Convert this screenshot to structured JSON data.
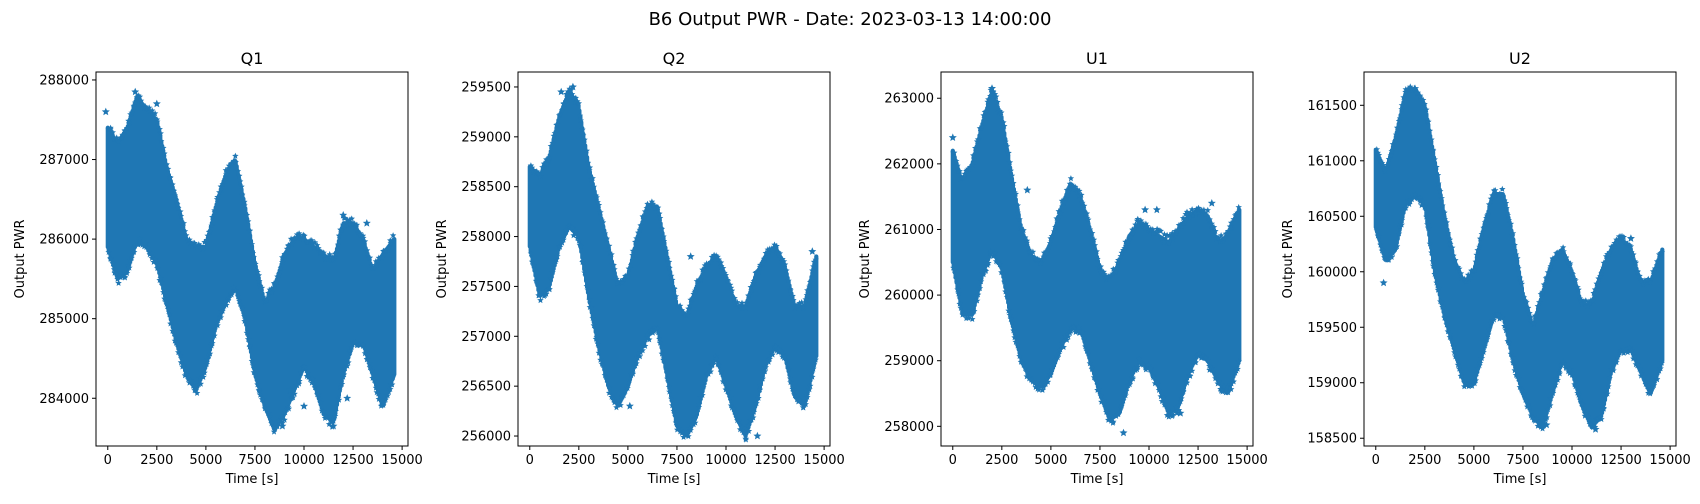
{
  "figure": {
    "title": "B6 Output PWR - Date: 2023-03-13 14:00:00"
  },
  "style": {
    "series_color": "#1f77b4",
    "axis_color": "#000000",
    "background": "#ffffff",
    "marker": "star"
  },
  "chart_data": [
    {
      "type": "scatter",
      "title": "Q1",
      "xlabel": "Time [s]",
      "ylabel": "Output PWR",
      "xlim": [
        -600,
        15300
      ],
      "ylim": [
        283400,
        288100
      ],
      "xticks": [
        0,
        2500,
        5000,
        7500,
        10000,
        12500,
        15000
      ],
      "yticks": [
        284000,
        285000,
        286000,
        287000,
        288000
      ],
      "series": [
        {
          "x": [
            0,
            500,
            1000,
            1500,
            2000,
            2500,
            3000,
            3500,
            4000,
            4500,
            5000,
            5500,
            6000,
            6500,
            7000,
            7500,
            8000,
            8500,
            9000,
            9500,
            10000,
            10500,
            11000,
            11500,
            12000,
            12500,
            13000,
            13500,
            14000,
            14600
          ],
          "upper": [
            287400,
            287200,
            287400,
            287800,
            287600,
            287500,
            286900,
            286500,
            286000,
            285900,
            285900,
            286400,
            286800,
            287000,
            286400,
            285700,
            285200,
            285400,
            285800,
            286000,
            286000,
            285900,
            285800,
            285700,
            286200,
            286200,
            286000,
            285600,
            285800,
            286000
          ],
          "lower": [
            285900,
            285500,
            285600,
            286000,
            285900,
            285700,
            285200,
            284700,
            284300,
            284100,
            284400,
            284900,
            285200,
            285400,
            285000,
            284300,
            283900,
            283600,
            283800,
            284100,
            284400,
            284200,
            283800,
            283700,
            284300,
            284700,
            284700,
            284300,
            283900,
            284300
          ],
          "outliers": [
            [
              1400,
              287850
            ],
            [
              2500,
              287700
            ],
            [
              -100,
              287600
            ],
            [
              12000,
              286300
            ],
            [
              13200,
              286200
            ],
            [
              8900,
              283650
            ],
            [
              10000,
              283900
            ],
            [
              11500,
              283650
            ],
            [
              12200,
              284000
            ],
            [
              9300,
              284100
            ]
          ]
        }
      ]
    },
    {
      "type": "scatter",
      "title": "Q2",
      "xlabel": "Time [s]",
      "ylabel": "Output PWR",
      "xlim": [
        -600,
        15300
      ],
      "ylim": [
        255900,
        259650
      ],
      "xticks": [
        0,
        2500,
        5000,
        7500,
        10000,
        12500,
        15000
      ],
      "yticks": [
        256000,
        256500,
        257000,
        257500,
        258000,
        258500,
        259000,
        259500
      ],
      "series": [
        {
          "x": [
            0,
            500,
            1000,
            1500,
            2000,
            2500,
            3000,
            3500,
            4000,
            4500,
            5000,
            5500,
            6000,
            6500,
            7000,
            7500,
            8000,
            8500,
            9000,
            9500,
            10000,
            10500,
            11000,
            11500,
            12000,
            12500,
            13000,
            13500,
            14000,
            14600
          ],
          "upper": [
            258700,
            258600,
            258800,
            259200,
            259450,
            259300,
            258700,
            258300,
            257900,
            257500,
            257600,
            258000,
            258300,
            258300,
            257800,
            257300,
            257200,
            257500,
            257700,
            257800,
            257600,
            257300,
            257300,
            257600,
            257800,
            257900,
            257700,
            257300,
            257300,
            257800
          ],
          "lower": [
            257900,
            257400,
            257500,
            257900,
            258100,
            258000,
            257400,
            256900,
            256500,
            256300,
            256500,
            256800,
            257000,
            257100,
            256600,
            256100,
            256000,
            256200,
            256600,
            256800,
            256500,
            256200,
            256000,
            256300,
            256700,
            256900,
            256800,
            256400,
            256300,
            256800
          ],
          "outliers": [
            [
              2200,
              259500
            ],
            [
              1600,
              259450
            ],
            [
              14400,
              257850
            ],
            [
              8200,
              257800
            ],
            [
              11600,
              256000
            ],
            [
              5100,
              256300
            ]
          ]
        }
      ]
    },
    {
      "type": "scatter",
      "title": "U1",
      "xlabel": "Time [s]",
      "ylabel": "Output PWR",
      "xlim": [
        -600,
        15300
      ],
      "ylim": [
        257700,
        263400
      ],
      "xticks": [
        0,
        2500,
        5000,
        7500,
        10000,
        12500,
        15000
      ],
      "yticks": [
        258000,
        259000,
        260000,
        261000,
        262000,
        263000
      ],
      "series": [
        {
          "x": [
            0,
            500,
            1000,
            1500,
            2000,
            2500,
            3000,
            3500,
            4000,
            4500,
            5000,
            5500,
            6000,
            6500,
            7000,
            7500,
            8000,
            8500,
            9000,
            9500,
            10000,
            10500,
            11000,
            11500,
            12000,
            12500,
            13000,
            13500,
            14000,
            14600
          ],
          "upper": [
            262200,
            261700,
            262000,
            262600,
            263100,
            262700,
            261800,
            261000,
            260600,
            260500,
            260800,
            261300,
            261700,
            261500,
            261000,
            260400,
            260200,
            260500,
            260900,
            261100,
            261000,
            260900,
            260800,
            261000,
            261200,
            261300,
            261200,
            260800,
            260900,
            261300
          ],
          "lower": [
            260500,
            259700,
            259700,
            260300,
            260700,
            260400,
            259600,
            259000,
            258700,
            258600,
            258800,
            259200,
            259500,
            259500,
            259000,
            258500,
            258100,
            258200,
            258700,
            259000,
            258900,
            258600,
            258200,
            258300,
            258800,
            259100,
            259000,
            258700,
            258500,
            259000
          ],
          "outliers": [
            [
              0,
              262400
            ],
            [
              2000,
              263150
            ],
            [
              9800,
              261300
            ],
            [
              10400,
              261300
            ],
            [
              13200,
              261400
            ],
            [
              8700,
              257900
            ],
            [
              11600,
              258200
            ],
            [
              3800,
              261600
            ]
          ]
        }
      ]
    },
    {
      "type": "scatter",
      "title": "U2",
      "xlabel": "Time [s]",
      "ylabel": "Output PWR",
      "xlim": [
        -600,
        15300
      ],
      "ylim": [
        158430,
        161800
      ],
      "xticks": [
        0,
        2500,
        5000,
        7500,
        10000,
        12500,
        15000
      ],
      "yticks": [
        158500,
        159000,
        159500,
        160000,
        160500,
        161000,
        161500
      ],
      "series": [
        {
          "x": [
            0,
            500,
            1000,
            1500,
            2000,
            2500,
            3000,
            3500,
            4000,
            4500,
            5000,
            5500,
            6000,
            6500,
            7000,
            7500,
            8000,
            8500,
            9000,
            9500,
            10000,
            10500,
            11000,
            11500,
            12000,
            12500,
            13000,
            13500,
            14000,
            14600
          ],
          "upper": [
            161100,
            160900,
            161200,
            161600,
            161650,
            161500,
            161000,
            160500,
            160100,
            159900,
            160000,
            160400,
            160700,
            160700,
            160300,
            159800,
            159500,
            159800,
            160100,
            160200,
            160000,
            159700,
            159700,
            160000,
            160200,
            160300,
            160200,
            159900,
            159900,
            160200
          ],
          "lower": [
            160400,
            160100,
            160200,
            160600,
            160700,
            160600,
            160000,
            159600,
            159300,
            159000,
            159000,
            159300,
            159600,
            159600,
            159200,
            158900,
            158700,
            158600,
            158900,
            159200,
            159100,
            158800,
            158600,
            158700,
            159100,
            159300,
            159300,
            159100,
            158900,
            159200
          ],
          "outliers": [
            [
              2000,
              161650
            ],
            [
              400,
              159900
            ],
            [
              11200,
              158580
            ],
            [
              8700,
              158620
            ],
            [
              13000,
              160300
            ]
          ]
        }
      ]
    }
  ]
}
